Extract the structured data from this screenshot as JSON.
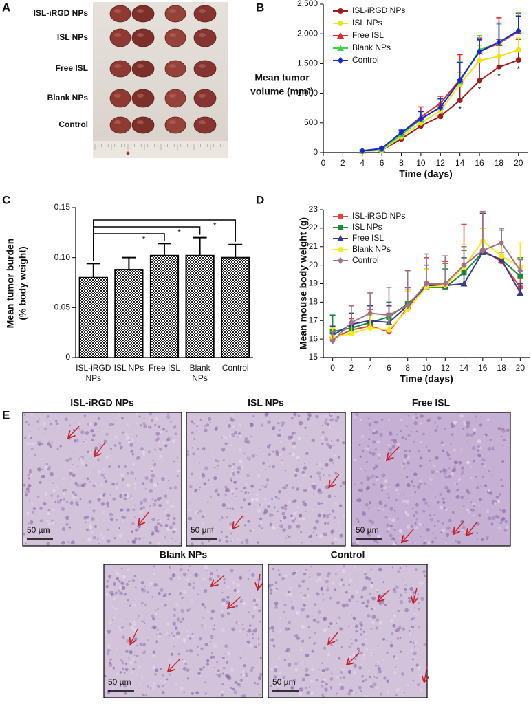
{
  "panel_letters": [
    "A",
    "B",
    "C",
    "D",
    "E"
  ],
  "photo": {
    "labels": [
      "ISL-iRGD NPs",
      "ISL NPs",
      "Free ISL",
      "Blank NPs",
      "Control"
    ]
  },
  "histology": {
    "scale_bar": "50 µm",
    "panels": [
      {
        "title": "ISL-iRGD NPs"
      },
      {
        "title": "ISL NPs"
      },
      {
        "title": "Free ISL"
      },
      {
        "title": "Blank NPs"
      },
      {
        "title": "Control"
      }
    ]
  },
  "chart_data": [
    {
      "type": "line",
      "y_label": [
        "Mean tumor",
        "volume (mm³)"
      ],
      "x_label": "Time (days)",
      "x": [
        4,
        6,
        8,
        10,
        12,
        14,
        16,
        18,
        20
      ],
      "xlim": [
        0,
        21
      ],
      "xticks": [
        0,
        2,
        4,
        6,
        8,
        10,
        12,
        14,
        16,
        18,
        20
      ],
      "ylim": [
        0,
        2500
      ],
      "yticks": [
        0,
        500,
        {
          "value": 1000,
          "label": "1,000"
        },
        {
          "value": 1500,
          "label": "1,500"
        },
        {
          "value": 2000,
          "label": "2,000"
        },
        {
          "value": 2500,
          "label": "2,500"
        }
      ],
      "legend": "upper left",
      "series": [
        {
          "name": "ISL-iRGD NPs",
          "color": "#9b1c1c",
          "marker": "circle",
          "values": [
            20,
            40,
            230,
            450,
            610,
            880,
            1210,
            1440,
            1560
          ],
          "errors": [
            10,
            20,
            40,
            60,
            60,
            350,
            350,
            470,
            350
          ]
        },
        {
          "name": "ISL NPs",
          "color": "#f0e020",
          "marker": "circle",
          "values": [
            20,
            40,
            270,
            500,
            700,
            1150,
            1550,
            1620,
            1730
          ],
          "errors": [
            10,
            20,
            40,
            80,
            80,
            200,
            250,
            200,
            200
          ]
        },
        {
          "name": "Free ISL",
          "color": "#e8252a",
          "marker": "triangle",
          "values": [
            30,
            60,
            330,
            600,
            830,
            1230,
            1700,
            1840,
            2040
          ],
          "errors": [
            10,
            20,
            50,
            170,
            120,
            420,
            230,
            430,
            300
          ]
        },
        {
          "name": "Blank NPs",
          "color": "#3ed44a",
          "marker": "triangle",
          "values": [
            30,
            60,
            300,
            560,
            770,
            1200,
            1730,
            1850,
            2060
          ],
          "errors": [
            10,
            20,
            60,
            130,
            120,
            340,
            240,
            300,
            300
          ]
        },
        {
          "name": "Control",
          "color": "#1428d8",
          "marker": "diamond",
          "values": [
            30,
            70,
            340,
            570,
            760,
            1220,
            1700,
            1860,
            2050
          ],
          "errors": [
            10,
            20,
            40,
            120,
            150,
            300,
            200,
            320,
            250
          ]
        }
      ],
      "significance": {
        "label": "*",
        "x": [
          14,
          16,
          18,
          20
        ]
      }
    },
    {
      "type": "bar",
      "y_label": [
        "Mean tumor burden",
        "(% body weight)"
      ],
      "categories": [
        [
          "ISL-iRGD",
          "NPs"
        ],
        [
          "ISL NPs"
        ],
        [
          "Free ISL"
        ],
        [
          "Blank",
          "NPs"
        ],
        [
          "Control"
        ]
      ],
      "values": [
        0.08,
        0.088,
        0.102,
        0.102,
        0.1
      ],
      "errors": [
        0.014,
        0.012,
        0.012,
        0.018,
        0.013
      ],
      "ylim": [
        0,
        0.15
      ],
      "yticks": [
        0,
        0.05,
        {
          "value": 0.1,
          "label": "0.10"
        },
        0.15
      ],
      "color": "#000000",
      "significance": {
        "label": "*",
        "versus": [
          2,
          3,
          4
        ]
      }
    },
    {
      "type": "line",
      "y_label": "Mean mouse body weight (g)",
      "x_label": "Time (days)",
      "x": [
        0,
        2,
        4,
        6,
        8,
        10,
        12,
        14,
        16,
        18,
        20
      ],
      "xlim": [
        -1,
        21
      ],
      "xticks": [
        0,
        2,
        4,
        6,
        8,
        10,
        12,
        14,
        16,
        18,
        20
      ],
      "ylim": [
        15,
        23
      ],
      "yticks": [
        15,
        16,
        17,
        18,
        19,
        20,
        21,
        22,
        23
      ],
      "legend": "upper left",
      "series": [
        {
          "name": "ISL-iRGD NPs",
          "color": "#e8413a",
          "marker": "circle",
          "values": [
            16.0,
            16.5,
            16.7,
            16.4,
            17.7,
            19.0,
            18.9,
            20.0,
            20.8,
            20.2,
            18.8
          ],
          "errors": [
            0.4,
            0.6,
            0.9,
            1.0,
            1.0,
            1.4,
            1.3,
            2.2,
            2.0,
            0.5,
            0.6
          ]
        },
        {
          "name": "ISL NPs",
          "color": "#1a8a3a",
          "marker": "square",
          "values": [
            16.4,
            16.6,
            16.9,
            17.2,
            17.9,
            18.8,
            18.8,
            19.6,
            20.7,
            20.3,
            19.4
          ],
          "errors": [
            0.9,
            0.8,
            0.9,
            0.8,
            0.9,
            1.0,
            1.0,
            1.2,
            1.3,
            1.7,
            1.0
          ]
        },
        {
          "name": "Free ISL",
          "color": "#3a3a8a",
          "marker": "triangle",
          "values": [
            16.2,
            16.8,
            17.0,
            16.9,
            17.8,
            18.9,
            18.9,
            19.0,
            20.7,
            20.3,
            18.5
          ],
          "errors": [
            0.5,
            0.6,
            0.8,
            0.9,
            1.0,
            1.1,
            1.2,
            1.4,
            2.1,
            1.6,
            0.5
          ]
        },
        {
          "name": "Blank NPs",
          "color": "#f5ea1e",
          "marker": "circle",
          "values": [
            16.1,
            16.3,
            16.6,
            16.5,
            17.6,
            18.8,
            18.9,
            19.9,
            21.3,
            20.5,
            19.9
          ],
          "errors": [
            0.5,
            0.6,
            0.7,
            0.8,
            1.0,
            1.0,
            1.1,
            1.2,
            0.7,
            0.8,
            1.3
          ]
        },
        {
          "name": "Control",
          "color": "#a0728a",
          "marker": "diamond",
          "values": [
            15.9,
            16.9,
            17.4,
            17.3,
            17.8,
            19.0,
            19.0,
            20.0,
            20.8,
            21.2,
            19.7
          ],
          "errors": [
            0.5,
            0.9,
            1.1,
            1.5,
            1.9,
            1.6,
            1.5,
            1.0,
            2.1,
            0.8,
            0.6
          ]
        }
      ]
    }
  ]
}
